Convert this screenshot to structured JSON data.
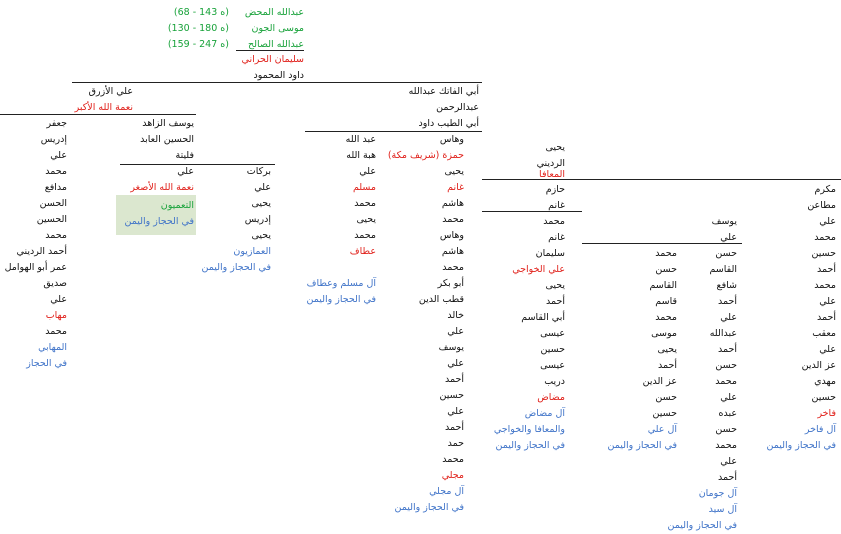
{
  "colors": {
    "text": "#111111",
    "red": "#e0201a",
    "green": "#18a23a",
    "blue": "#3f73c8",
    "highlight": "#dbe7cf",
    "line": "#222222"
  },
  "top": {
    "l1": "عبدالله المحض",
    "l1d": "(ه 143 - 68)",
    "l2": "موسى الجون",
    "l2d": "(ه 180 - 130)",
    "l3": "عبدالله الصالح",
    "l3d": "(ه 247 - 159)",
    "l4": "سليمان الحراني",
    "l5": "داود المحمود"
  },
  "upper": {
    "ali_azraq": "علي الأزرق",
    "nimat_akbar": "نعمة الله الأكبر",
    "abu_fatik": "أبي الفاتك عبدالله",
    "abd_rahman": "عبدالرحمن",
    "abu_tayyib": "أبي الطيب داود"
  },
  "c1": {
    "items": [
      "جعفر",
      "إدريس",
      "علي",
      "محمد",
      "مدافع",
      "الحسن",
      "الحسين",
      "محمد",
      "أحمد الرديني",
      "عمر أبو الهوامل",
      "صديق",
      "علي",
      "مهاب",
      "محمد",
      "المهابي",
      "في الحجاز"
    ]
  },
  "c2": {
    "items": [
      "يوسف الزاهد",
      "الحسين العابد",
      "فليتة",
      "علي",
      "نعمة الله الأصغر",
      "التعميون",
      "في الحجاز واليمن"
    ]
  },
  "c3": {
    "items": [
      "بركات",
      "علي",
      "يحيى",
      "إدريس",
      "يحيى",
      "العمازيون",
      "في الحجاز واليمن"
    ]
  },
  "c4": {
    "items": [
      "عبد الله",
      "هبة الله",
      "علي",
      "مسلم",
      "محمد",
      "يحيى",
      "محمد",
      "عطاف",
      "آل مسلم وعطاف",
      "في الحجاز واليمن"
    ]
  },
  "c5": {
    "items": [
      "وهاس",
      "حمزة (شريف مكة)",
      "يحيى",
      "غانم",
      "هاشم",
      "محمد",
      "وهاس",
      "هاشم",
      "محمد",
      "أبو بكر",
      "قطب الدين",
      "خالد",
      "علي",
      "يوسف",
      "علي",
      "أحمد",
      "حسين",
      "علي",
      "أحمد",
      "حمد",
      "محمد",
      "مجلي",
      "آل مجلي",
      "في الحجاز واليمن"
    ]
  },
  "c6": {
    "items": [
      "يحيى",
      "الرديني",
      "المعافا",
      "حازم",
      "غانم",
      "محمد",
      "غانم",
      "سليمان",
      "علي الخواجي",
      "يحيى",
      "أحمد",
      "أبي القاسم",
      "عيسى",
      "حسين",
      "عيسى",
      "دريب",
      "مضاض",
      "آل مضاض",
      "والمعافا والخواجي",
      "في الحجاز واليمن"
    ]
  },
  "c7": {
    "items": [
      "محمد",
      "حسن",
      "القاسم",
      "قاسم",
      "محمد",
      "موسى",
      "يحيى",
      "أحمد",
      "عز الدين",
      "حسن",
      "حسين",
      "آل علي",
      "في الحجاز واليمن"
    ]
  },
  "c8": {
    "items": [
      "يوسف",
      "علي",
      "حسن",
      "القاسم",
      "شافع",
      "أحمد",
      "علي",
      "عبدالله",
      "أحمد",
      "حسن",
      "محمد",
      "علي",
      "عبده",
      "حسن",
      "محمد",
      "علي",
      "أحمد",
      "آل جومان",
      "آل سيد",
      "في الحجاز واليمن"
    ]
  },
  "c9": {
    "items": [
      "مكرم",
      "مطاعن",
      "علي",
      "محمد",
      "حسين",
      "أحمد",
      "محمد",
      "علي",
      "أحمد",
      "معقب",
      "علي",
      "عز الدين",
      "مهدي",
      "حسين",
      "فاخر",
      "آل فاخر",
      "في الحجاز واليمن"
    ]
  }
}
